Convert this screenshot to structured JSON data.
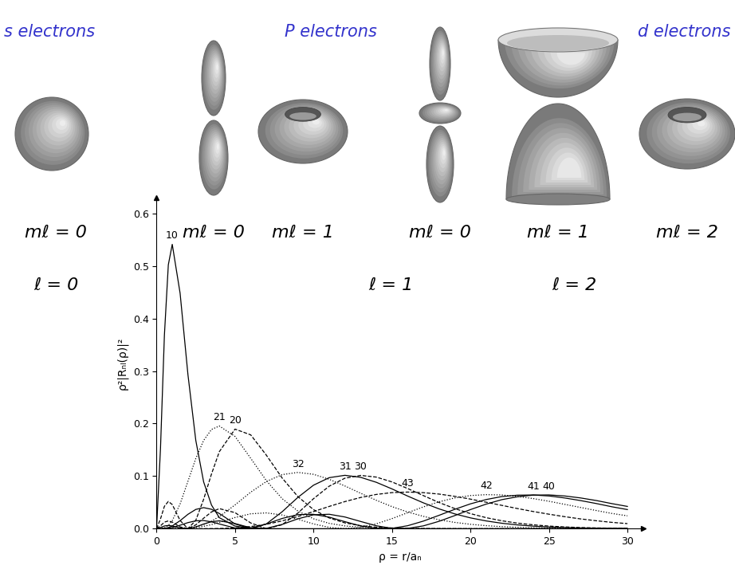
{
  "orbitals": {
    "groups": [
      {
        "label": "s electrons",
        "l_label": "ℓ = 0",
        "m_labels": [
          "mℓ = 0"
        ]
      },
      {
        "label": "P electrons",
        "l_label": "ℓ = 1",
        "m_labels": [
          "mℓ = 0",
          "mℓ = 1"
        ]
      },
      {
        "label": "d electrons",
        "l_label": "ℓ = 2",
        "m_labels": [
          "mℓ = 0",
          "mℓ = 1",
          "mℓ = 2"
        ]
      }
    ]
  },
  "chart_data": {
    "type": "line",
    "x_label": "ρ = r/aₙ",
    "y_label": "ρ²|Rₙₗ(ρ)|²",
    "x": [
      0,
      0.25,
      0.5,
      0.75,
      1,
      1.5,
      2,
      2.5,
      3,
      3.5,
      4,
      5,
      6,
      7,
      8,
      9,
      10,
      11,
      12,
      13,
      14,
      15,
      16,
      17,
      18,
      19,
      20,
      21,
      22,
      23,
      24,
      25,
      26,
      27,
      28,
      29,
      30
    ],
    "xlim": [
      0,
      31
    ],
    "ylim": [
      0,
      0.63
    ],
    "xticks": [
      0,
      5,
      10,
      15,
      20,
      25,
      30
    ],
    "yticks": [
      0.0,
      0.1,
      0.2,
      0.3,
      0.4,
      0.5,
      0.6
    ],
    "series": [
      {
        "name": "10",
        "color": "#000000",
        "line_style": "solid",
        "values": [
          0,
          0.152,
          0.368,
          0.502,
          0.541,
          0.448,
          0.293,
          0.168,
          0.089,
          0.045,
          0.021,
          0.005,
          0.001,
          0.0002,
          0,
          0,
          0,
          0,
          0,
          0,
          0,
          0,
          0,
          0,
          0,
          0,
          0,
          0,
          0,
          0,
          0,
          0,
          0,
          0,
          0,
          0,
          0
        ]
      },
      {
        "name": "20",
        "color": "#000000",
        "line_style": "dashed",
        "values": [
          0,
          0.0186,
          0.0426,
          0.0519,
          0.046,
          0.0157,
          0,
          0.016,
          0.056,
          0.104,
          0.1466,
          0.1895,
          0.1785,
          0.1397,
          0.0965,
          0.0612,
          0.0363,
          0.0205,
          0.0111,
          0.0058,
          0.0029,
          0.0015,
          0.0007,
          0.0003,
          0.0002,
          0.0001,
          0,
          0,
          0,
          0,
          0,
          0,
          0,
          0,
          0,
          0,
          0
        ]
      },
      {
        "name": "21",
        "color": "#000000",
        "line_style": "dotted",
        "values": [
          0,
          0.0001,
          0.0016,
          0.0062,
          0.0153,
          0.0471,
          0.0902,
          0.1336,
          0.168,
          0.1888,
          0.1954,
          0.1755,
          0.1339,
          0.0912,
          0.0572,
          0.0337,
          0.0189,
          0.0102,
          0.0053,
          0.0027,
          0.0013,
          0.0006,
          0.0003,
          0.0001,
          0,
          0,
          0,
          0,
          0,
          0,
          0,
          0,
          0,
          0,
          0,
          0,
          0
        ]
      },
      {
        "name": "30",
        "color": "#000000",
        "line_style": "dashed",
        "values": [
          0,
          0.0055,
          0.0125,
          0.0148,
          0.0126,
          0.0034,
          0.0002,
          0.0073,
          0.02,
          0.0319,
          0.0382,
          0.0306,
          0.0109,
          0.0001,
          0.0076,
          0.0297,
          0.0571,
          0.0809,
          0.0961,
          0.1014,
          0.0982,
          0.089,
          0.0764,
          0.063,
          0.0498,
          0.0383,
          0.0287,
          0.021,
          0.0151,
          0.0106,
          0.0074,
          0.005,
          0.0034,
          0.0022,
          0.0015,
          0.001,
          0.0006
        ]
      },
      {
        "name": "31",
        "color": "#000000",
        "line_style": "solid",
        "values": [
          0,
          0,
          0.0006,
          0.0021,
          0.0052,
          0.0153,
          0.0274,
          0.0367,
          0.0401,
          0.037,
          0.0289,
          0.0091,
          0,
          0.0092,
          0.0322,
          0.0595,
          0.0828,
          0.0971,
          0.1016,
          0.0978,
          0.0883,
          0.0757,
          0.0621,
          0.0492,
          0.0377,
          0.0282,
          0.0206,
          0.0148,
          0.0104,
          0.0072,
          0.0049,
          0.0033,
          0.0022,
          0.0014,
          0.0009,
          0.0006,
          0.0004
        ]
      },
      {
        "name": "32",
        "color": "#000000",
        "line_style": "dotted",
        "values": [
          0,
          0,
          0,
          0,
          0,
          0.0003,
          0.0014,
          0.0037,
          0.008,
          0.0145,
          0.0231,
          0.0453,
          0.0695,
          0.0899,
          0.1029,
          0.1071,
          0.1035,
          0.094,
          0.0813,
          0.0675,
          0.0541,
          0.042,
          0.0318,
          0.0235,
          0.017,
          0.012,
          0.0084,
          0.0058,
          0.0039,
          0.0026,
          0.0017,
          0.0011,
          0.0007,
          0.0005,
          0.0003,
          0.0002,
          0.0001
        ]
      },
      {
        "name": "40",
        "color": "#000000",
        "line_style": "solid",
        "values": [
          0,
          0.0023,
          0.0052,
          0.0062,
          0.0052,
          0.0013,
          0.0002,
          0.0034,
          0.0089,
          0.0134,
          0.015,
          0.0098,
          0.0018,
          0.0007,
          0.0081,
          0.0188,
          0.0264,
          0.0275,
          0.0223,
          0.0138,
          0.0056,
          0.0007,
          0.0006,
          0.0054,
          0.0141,
          0.025,
          0.0364,
          0.0468,
          0.0553,
          0.0608,
          0.0639,
          0.0643,
          0.0623,
          0.0586,
          0.0537,
          0.0478,
          0.0424
        ]
      },
      {
        "name": "41",
        "color": "#000000",
        "line_style": "solid",
        "values": [
          0,
          0,
          0.0002,
          0.001,
          0.0023,
          0.0066,
          0.0116,
          0.015,
          0.0155,
          0.0131,
          0.009,
          0.0013,
          0.001,
          0.0089,
          0.0195,
          0.0268,
          0.0274,
          0.022,
          0.0134,
          0.0053,
          0.0006,
          0.0007,
          0.0057,
          0.0145,
          0.0255,
          0.0369,
          0.0473,
          0.0555,
          0.0612,
          0.0638,
          0.0642,
          0.0623,
          0.0585,
          0.0536,
          0.048,
          0.0418,
          0.0364
        ]
      },
      {
        "name": "42",
        "color": "#000000",
        "line_style": "dotted",
        "values": [
          0,
          0,
          0,
          0,
          0,
          0.0002,
          0.0008,
          0.0021,
          0.0045,
          0.0078,
          0.012,
          0.0213,
          0.0284,
          0.0301,
          0.0261,
          0.018,
          0.0091,
          0.0025,
          0,
          0.0025,
          0.0093,
          0.0192,
          0.0305,
          0.0415,
          0.0512,
          0.0586,
          0.0631,
          0.0648,
          0.0642,
          0.0613,
          0.0573,
          0.0522,
          0.0464,
          0.0405,
          0.0347,
          0.0291,
          0.0245
        ]
      },
      {
        "name": "43",
        "color": "#000000",
        "line_style": "dashed",
        "values": [
          0,
          0,
          0,
          0,
          0,
          0,
          0,
          0,
          0.0001,
          0.0002,
          0.0004,
          0.0016,
          0.0041,
          0.0084,
          0.0149,
          0.0232,
          0.0326,
          0.0424,
          0.0516,
          0.0594,
          0.0652,
          0.0687,
          0.0697,
          0.0686,
          0.0659,
          0.0616,
          0.0563,
          0.0504,
          0.0444,
          0.0383,
          0.0327,
          0.0276,
          0.0229,
          0.0187,
          0.0152,
          0.0121,
          0.0097
        ]
      }
    ]
  }
}
